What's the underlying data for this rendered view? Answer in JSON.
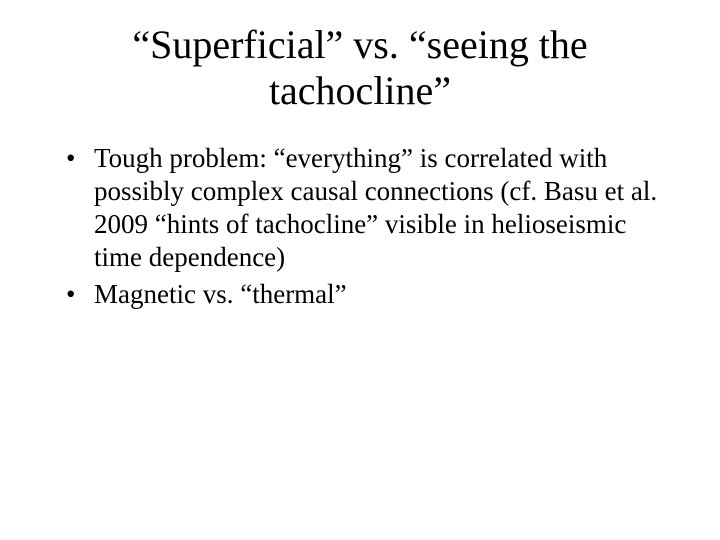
{
  "slide": {
    "title": "“Superficial” vs. “seeing the tachocline”",
    "bullets": [
      "Tough problem: “everything” is correlated with possibly complex causal connections (cf. Basu et al. 2009 “hints of tachocline” visible in helioseismic time dependence)",
      "Magnetic vs. “thermal”"
    ],
    "colors": {
      "background": "#ffffff",
      "text": "#000000"
    },
    "typography": {
      "title_fontsize": 40,
      "body_fontsize": 27,
      "font_family": "Times New Roman"
    }
  }
}
